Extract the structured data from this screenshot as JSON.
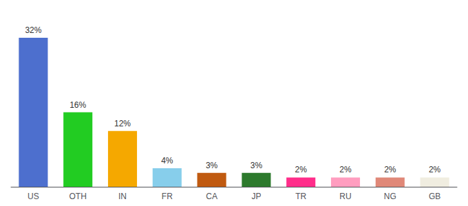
{
  "chart_data": {
    "type": "bar",
    "categories": [
      "US",
      "OTH",
      "IN",
      "FR",
      "CA",
      "JP",
      "TR",
      "RU",
      "NG",
      "GB"
    ],
    "values": [
      32,
      16,
      12,
      4,
      3,
      3,
      2,
      2,
      2,
      2
    ],
    "value_labels": [
      "32%",
      "16%",
      "12%",
      "4%",
      "3%",
      "3%",
      "2%",
      "2%",
      "2%",
      "2%"
    ],
    "colors": [
      "#4d6fce",
      "#22cc22",
      "#f5a800",
      "#87ceeb",
      "#c05a10",
      "#2d7a2d",
      "#ff2d8a",
      "#ff9dbf",
      "#e08878",
      "#f0ede0"
    ],
    "ylim": [
      0,
      36
    ],
    "grid": false,
    "tick_labels": "x",
    "data_labels": true
  }
}
